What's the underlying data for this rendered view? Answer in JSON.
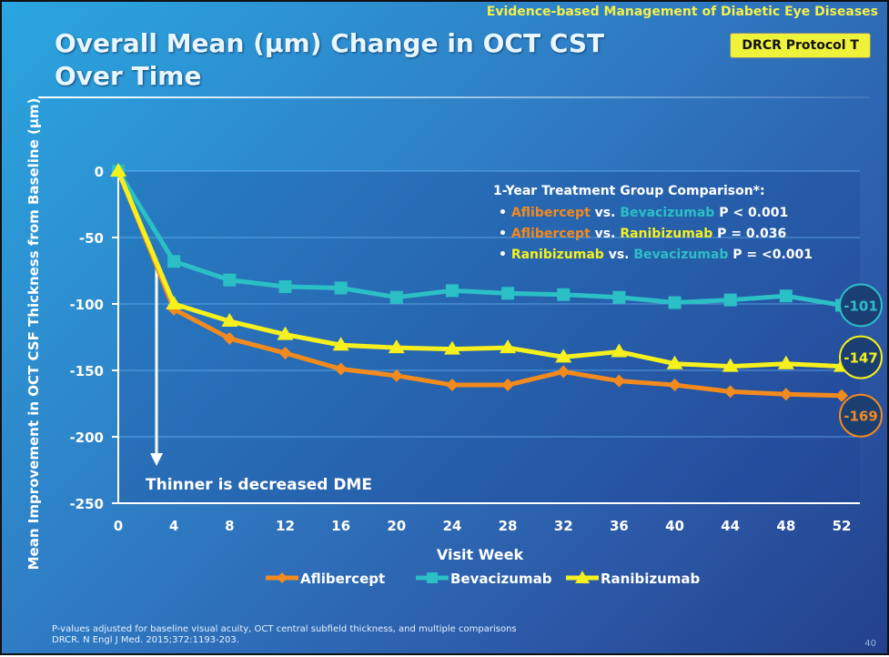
{
  "header": {
    "banner": "Evidence-based Management of Diabetic Eye Diseases",
    "title_line1": "Overall Mean (µm) Change in OCT CST",
    "title_line2": "Over Time",
    "badge": "DRCR Protocol T"
  },
  "chart_data": {
    "type": "line",
    "xlabel": "Visit Week",
    "ylabel": "Mean Improvement in OCT CSF Thickness from Baseline (µm)",
    "x": [
      0,
      4,
      8,
      12,
      16,
      20,
      24,
      28,
      32,
      36,
      40,
      44,
      48,
      52
    ],
    "ylim": [
      -250,
      0
    ],
    "yticks": [
      0,
      -50,
      -100,
      -150,
      -200,
      -250
    ],
    "grid": true,
    "legend_position": "bottom",
    "series": [
      {
        "name": "Aflibercept",
        "color": "#f28a1e",
        "marker": "diamond",
        "values": [
          0,
          -104,
          -126,
          -137,
          -149,
          -154,
          -161,
          -161,
          -151,
          -158,
          -161,
          -166,
          -168,
          -169
        ],
        "end_label": "-169"
      },
      {
        "name": "Bevacizumab",
        "color": "#2bbfc6",
        "marker": "square",
        "values": [
          0,
          -68,
          -82,
          -87,
          -88,
          -95,
          -90,
          -92,
          -93,
          -95,
          -99,
          -97,
          -94,
          -101
        ],
        "end_label": "-101"
      },
      {
        "name": "Ranibizumab",
        "color": "#f5f01e",
        "marker": "triangle",
        "values": [
          0,
          -100,
          -113,
          -123,
          -131,
          -133,
          -134,
          -133,
          -140,
          -136,
          -145,
          -147,
          -145,
          -147
        ],
        "end_label": "-147"
      }
    ],
    "annotation": "Thinner is decreased DME",
    "comparison": {
      "heading": "1-Year Treatment Group Comparison*:",
      "rows": [
        {
          "a": "Aflibercept",
          "a_color": "#f28a1e",
          "vs": " vs. ",
          "b": "Bevacizumab",
          "b_color": "#2bbfc6",
          "p": " P < 0.001"
        },
        {
          "a": "Aflibercept",
          "a_color": "#f28a1e",
          "vs": " vs. ",
          "b": "Ranibizumab",
          "b_color": "#f5f01e",
          "p": " P = 0.036"
        },
        {
          "a": "Ranibizumab",
          "a_color": "#f5f01e",
          "vs": " vs. ",
          "b": "Bevacizumab",
          "b_color": "#2bbfc6",
          "p": " P = <0.001"
        }
      ]
    }
  },
  "footer": {
    "line1": "P-values adjusted for baseline visual acuity,  OCT central subfield thickness, and multiple comparisons",
    "line2": "DRCR. N Engl J Med. 2015;372:1193-203."
  },
  "page_number": "40"
}
